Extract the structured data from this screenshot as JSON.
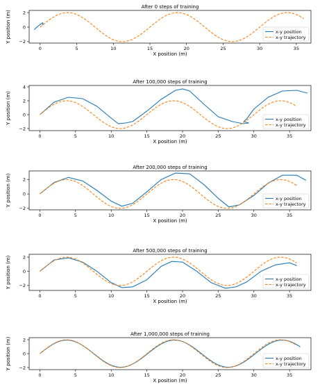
{
  "chart_data": [
    {
      "type": "line",
      "title": "After 0 steps of training",
      "xlabel": "X position (m)",
      "ylabel": "Y position (m)",
      "xlim": [
        -1.5,
        37
      ],
      "ylim": [
        -2.2,
        2.3
      ],
      "xticks": [
        0,
        5,
        10,
        15,
        20,
        25,
        30,
        35
      ],
      "yticks": [
        -2,
        0,
        2
      ],
      "legend": "lower right",
      "series": [
        {
          "name": "x-y position",
          "color": "#1f77b4",
          "dash": "solid",
          "x": [
            -0.8,
            -0.5,
            -0.2,
            0.0,
            0.2,
            0.35,
            0.4,
            0.3
          ],
          "y": [
            -0.35,
            -0.05,
            0.2,
            0.35,
            0.5,
            0.6,
            0.45,
            0.3
          ]
        },
        {
          "name": "x-y trajectory",
          "color": "#ff7f0e",
          "dash": "dashed",
          "curve": "sine",
          "x_start": 0,
          "x_end": 36,
          "amplitude": 2.0,
          "period": 15
        }
      ]
    },
    {
      "type": "line",
      "title": "After 100,000 steps of training",
      "xlabel": "X position (m)",
      "ylabel": "Y position (m)",
      "xlim": [
        -1.5,
        38
      ],
      "ylim": [
        -2.3,
        4.2
      ],
      "xticks": [
        0,
        5,
        10,
        15,
        20,
        25,
        30,
        35
      ],
      "yticks": [
        -2,
        0,
        2,
        4
      ],
      "legend": "lower right",
      "series": [
        {
          "name": "x-y position",
          "color": "#1f77b4",
          "dash": "solid",
          "x": [
            0,
            2,
            4,
            6,
            8,
            10,
            11,
            12,
            13,
            15,
            17,
            19,
            20,
            21,
            23,
            25,
            27,
            28.5,
            29.3,
            28.6,
            29.0,
            30,
            32,
            34,
            36,
            37.5
          ],
          "y": [
            0,
            1.8,
            2.5,
            2.3,
            1.2,
            -0.5,
            -1.3,
            -1.2,
            -1.0,
            0.5,
            2.2,
            3.5,
            3.7,
            3.4,
            1.5,
            -0.3,
            -1.0,
            -1.3,
            -1.2,
            -1.0,
            -0.6,
            0.8,
            2.5,
            3.4,
            3.5,
            3.1
          ]
        },
        {
          "name": "x-y trajectory",
          "color": "#ff7f0e",
          "dash": "dashed",
          "curve": "sine",
          "x_start": 0,
          "x_end": 36,
          "amplitude": 2.0,
          "period": 15
        }
      ]
    },
    {
      "type": "line",
      "title": "After 200,000 steps of training",
      "xlabel": "X position (m)",
      "ylabel": "Y position (m)",
      "xlim": [
        -1.5,
        38
      ],
      "ylim": [
        -2.2,
        3.2
      ],
      "xticks": [
        0,
        5,
        10,
        15,
        20,
        25,
        30,
        35
      ],
      "yticks": [
        -2,
        0,
        2
      ],
      "legend": "lower right",
      "series": [
        {
          "name": "x-y position",
          "color": "#1f77b4",
          "dash": "solid",
          "x": [
            0,
            2,
            4,
            6,
            8,
            10,
            11.5,
            13,
            15,
            17,
            19,
            21,
            23,
            25,
            26.5,
            28,
            30,
            32,
            34,
            36,
            37.3
          ],
          "y": [
            0,
            1.6,
            2.3,
            1.8,
            0.5,
            -1.0,
            -1.7,
            -1.3,
            0.3,
            2.0,
            2.9,
            2.8,
            1.3,
            -0.6,
            -1.8,
            -1.5,
            -0.2,
            1.5,
            2.6,
            2.6,
            1.9
          ]
        },
        {
          "name": "x-y trajectory",
          "color": "#ff7f0e",
          "dash": "dashed",
          "curve": "sine",
          "x_start": 0,
          "x_end": 36,
          "amplitude": 2.0,
          "period": 15
        }
      ]
    },
    {
      "type": "line",
      "title": "After 500,000 steps of training",
      "xlabel": "X position (m)",
      "ylabel": "Y position (m)",
      "xlim": [
        -1.5,
        38
      ],
      "ylim": [
        -2.7,
        2.4
      ],
      "xticks": [
        0,
        5,
        10,
        15,
        20,
        25,
        30,
        35
      ],
      "yticks": [
        -2,
        0,
        2
      ],
      "legend": "lower right",
      "series": [
        {
          "name": "x-y position",
          "color": "#1f77b4",
          "dash": "solid",
          "x": [
            0,
            2,
            4,
            6,
            8,
            10,
            11.5,
            13,
            15,
            17,
            18.5,
            20,
            22,
            24,
            26,
            27.5,
            29,
            31,
            33,
            35,
            36
          ],
          "y": [
            0,
            1.6,
            1.9,
            1.3,
            0,
            -1.6,
            -2.3,
            -2.2,
            -1.2,
            0.7,
            1.4,
            1.3,
            0,
            -1.6,
            -2.4,
            -2.2,
            -1.5,
            0,
            0.9,
            1.2,
            0.8
          ]
        },
        {
          "name": "x-y trajectory",
          "color": "#ff7f0e",
          "dash": "dashed",
          "curve": "sine",
          "x_start": 0,
          "x_end": 36,
          "amplitude": 2.0,
          "period": 15
        }
      ]
    },
    {
      "type": "line",
      "title": "After 1,000,000 steps of training",
      "xlabel": "X position (m)",
      "ylabel": "Y position (m)",
      "xlim": [
        -1.5,
        38
      ],
      "ylim": [
        -2.3,
        2.3
      ],
      "xticks": [
        0,
        5,
        10,
        15,
        20,
        25,
        30,
        35
      ],
      "yticks": [
        -2,
        0,
        2
      ],
      "legend": "lower right",
      "series": [
        {
          "name": "x-y position",
          "color": "#1f77b4",
          "dash": "solid",
          "curve": "sine",
          "x_start": 0,
          "x_end": 36.5,
          "amplitude": 1.95,
          "period": 15.1
        },
        {
          "name": "x-y trajectory",
          "color": "#ff7f0e",
          "dash": "dashed",
          "curve": "sine",
          "x_start": 0,
          "x_end": 36,
          "amplitude": 2.0,
          "period": 15
        }
      ]
    }
  ]
}
